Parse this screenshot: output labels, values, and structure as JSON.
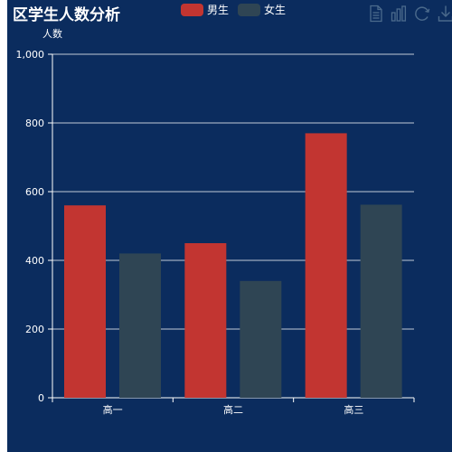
{
  "title": "区学生人数分析",
  "legend": [
    {
      "name": "男生",
      "color": "#c23531"
    },
    {
      "name": "女生",
      "color": "#2f4554"
    }
  ],
  "toolbox": [
    "data-view-icon",
    "bar-chart-icon",
    "restore-icon",
    "save-image-icon"
  ],
  "colors": {
    "background": "#0b2c5e",
    "axis": "#ffffff",
    "grid": "#ffffff",
    "tool": "#4b6a8c"
  },
  "chart_data": {
    "type": "bar",
    "title": "区学生人数分析",
    "xlabel": "",
    "ylabel": "人数",
    "categories": [
      "高一",
      "高二",
      "高三"
    ],
    "series": [
      {
        "name": "男生",
        "values": [
          560,
          450,
          770
        ],
        "color": "#c23531"
      },
      {
        "name": "女生",
        "values": [
          420,
          340,
          562
        ],
        "color": "#2f4554"
      }
    ],
    "ylim": [
      0,
      1000
    ],
    "yticks": [
      0,
      200,
      400,
      600,
      800,
      1000
    ],
    "ytick_labels": [
      "0",
      "200",
      "400",
      "600",
      "800",
      "1,000"
    ],
    "grid": true,
    "legend_position": "top-center"
  }
}
